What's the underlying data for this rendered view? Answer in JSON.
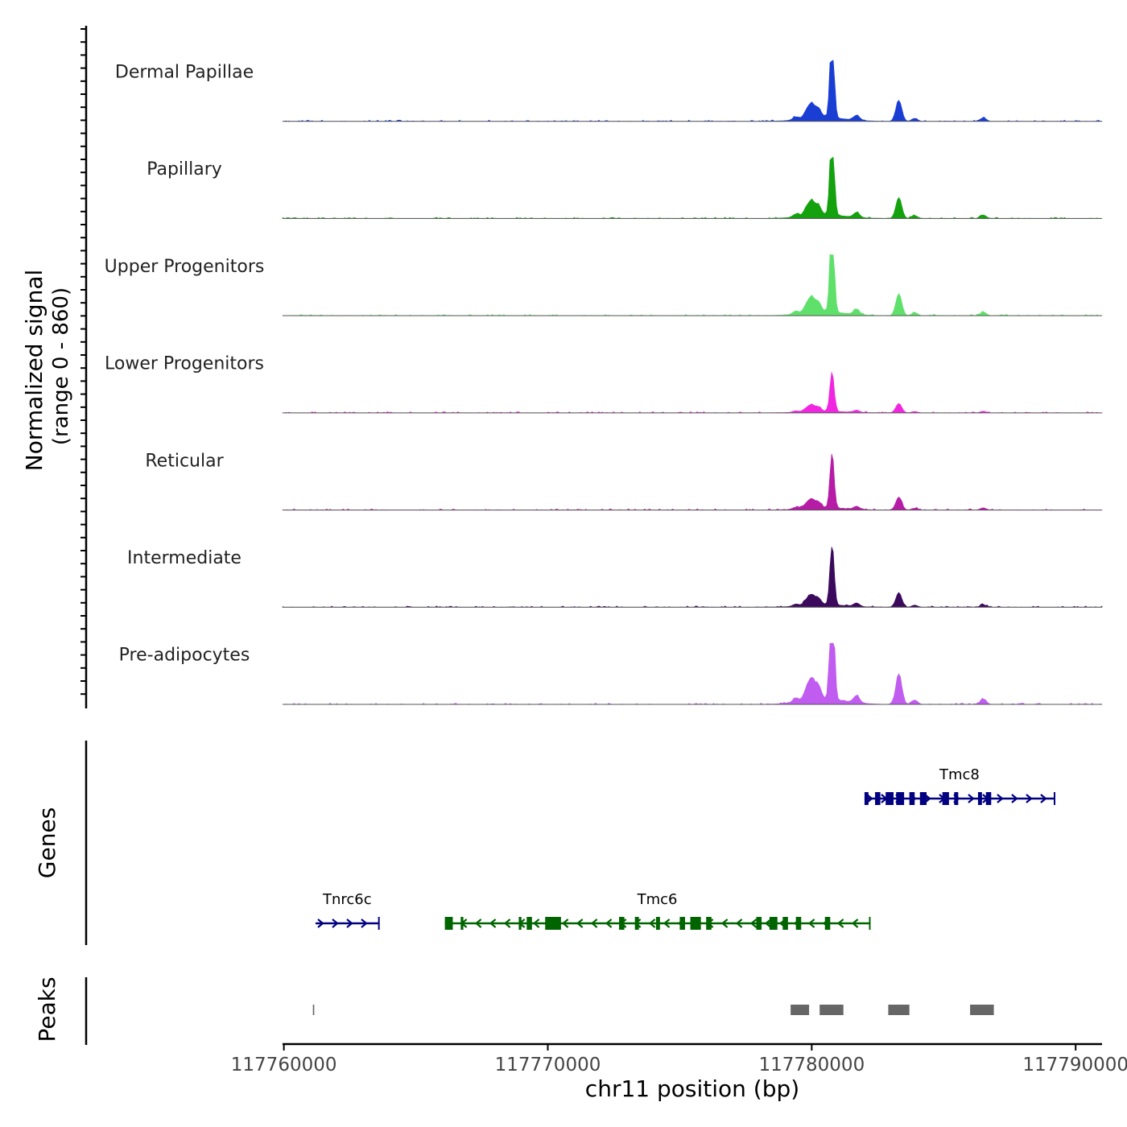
{
  "chart_data": {
    "type": "area",
    "title": "",
    "ylabel_line1": "Normalized signal",
    "ylabel_line2": "(range 0 - 860)",
    "y_range": [
      0,
      860
    ],
    "xlabel": "chr11 position (bp)",
    "x_range": [
      117759950,
      117791000
    ],
    "x_ticks": [
      117760000,
      117770000,
      117780000,
      117790000
    ],
    "x_tick_labels": [
      "117760000",
      "117770000",
      "117780000",
      "117790000"
    ],
    "tracks": [
      {
        "name": "Dermal Papillae",
        "color": "#1a3ed4",
        "scale": 1.0
      },
      {
        "name": "Papillary",
        "color": "#13a10e",
        "scale": 1.0
      },
      {
        "name": "Upper Progenitors",
        "color": "#5fe06b",
        "scale": 1.05
      },
      {
        "name": "Lower Progenitors",
        "color": "#f026e0",
        "scale": 0.45
      },
      {
        "name": "Reticular",
        "color": "#b61ca6",
        "scale": 0.62
      },
      {
        "name": "Intermediate",
        "color": "#3b0a5c",
        "scale": 0.7
      },
      {
        "name": "Pre-adipocytes",
        "color": "#c05cf0",
        "scale": 1.45
      }
    ],
    "signal_peaks": [
      {
        "pos": 117779400,
        "height": 0.05
      },
      {
        "pos": 117779800,
        "height": 0.12
      },
      {
        "pos": 117780000,
        "height": 0.22
      },
      {
        "pos": 117780250,
        "height": 0.16
      },
      {
        "pos": 117780750,
        "height": 0.55
      },
      {
        "pos": 117780780,
        "height": 0.95
      },
      {
        "pos": 117781700,
        "height": 0.08
      },
      {
        "pos": 117783300,
        "height": 0.35
      },
      {
        "pos": 117783900,
        "height": 0.05
      },
      {
        "pos": 117786500,
        "height": 0.06
      }
    ],
    "genes_track_label": "Genes",
    "genes": [
      {
        "name": "Tmc8",
        "start": 117782000,
        "end": 117789200,
        "strand": "+",
        "color": "#000080",
        "row": 0,
        "exons": [
          [
            117782000,
            117782150
          ],
          [
            117782400,
            117782600
          ],
          [
            117782800,
            117783100
          ],
          [
            117783200,
            117783500
          ],
          [
            117783700,
            117783900
          ],
          [
            117784100,
            117784350
          ],
          [
            117784950,
            117785200
          ],
          [
            117785400,
            117785550
          ],
          [
            117786300,
            117786450
          ],
          [
            117786600,
            117786800
          ]
        ]
      },
      {
        "name": "Tnrc6c",
        "start": 117761200,
        "end": 117763600,
        "strand": "+",
        "color": "#000080",
        "row": 1,
        "exons": []
      },
      {
        "name": "Tmc6",
        "start": 117766100,
        "end": 117782200,
        "strand": "-",
        "color": "#006400",
        "row": 1,
        "exons": [
          [
            117766100,
            117766400
          ],
          [
            117766700,
            117766800
          ],
          [
            117768900,
            117769000
          ],
          [
            117769200,
            117769400
          ],
          [
            117769900,
            117770500
          ],
          [
            117772700,
            117772900
          ],
          [
            117773300,
            117773450
          ],
          [
            117774100,
            117774250
          ],
          [
            117775000,
            117775200
          ],
          [
            117775400,
            117775800
          ],
          [
            117776000,
            117776200
          ],
          [
            117777900,
            117778100
          ],
          [
            117778400,
            117778700
          ],
          [
            117778900,
            117779100
          ],
          [
            117779400,
            117779600
          ],
          [
            117780500,
            117780700
          ]
        ]
      }
    ],
    "peaks_track_label": "Peaks",
    "peaks": [
      [
        117761100,
        117761150
      ],
      [
        117779200,
        117779900
      ],
      [
        117780300,
        117781200
      ],
      [
        117782900,
        117783700
      ],
      [
        117786000,
        117786900
      ]
    ]
  }
}
